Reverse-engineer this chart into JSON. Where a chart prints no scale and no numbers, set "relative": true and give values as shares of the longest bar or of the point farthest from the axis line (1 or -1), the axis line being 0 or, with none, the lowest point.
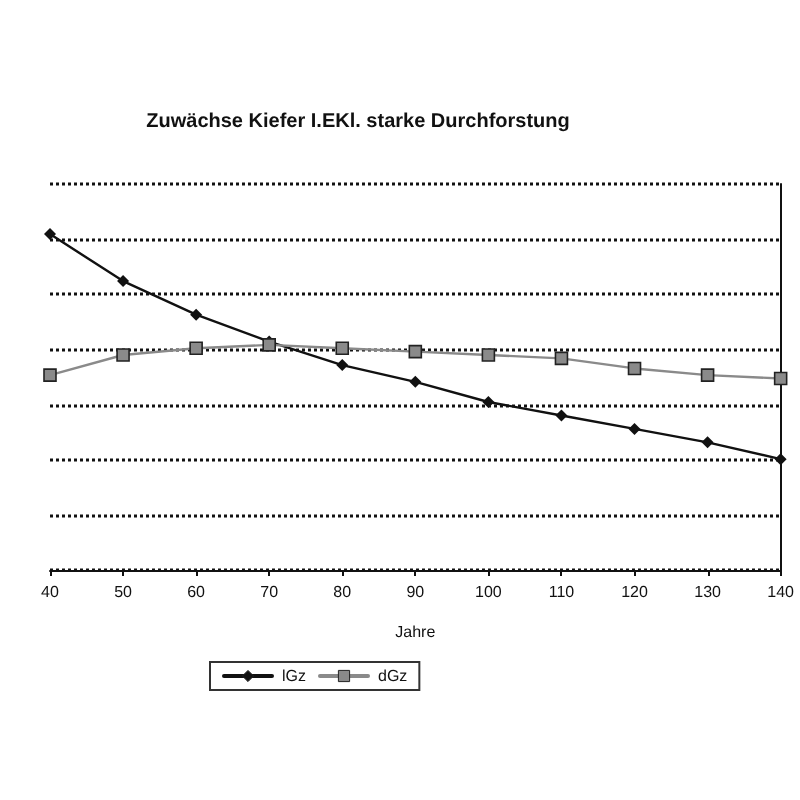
{
  "chart_data": {
    "type": "line",
    "title": "Zuwächse Kiefer I.EKl. starke Durchforstung",
    "xlabel": "Jahre",
    "relative": true,
    "x": [
      40,
      50,
      60,
      70,
      80,
      90,
      100,
      110,
      120,
      130,
      140
    ],
    "xlim": [
      40,
      140
    ],
    "xticks": [
      40,
      50,
      60,
      70,
      80,
      90,
      100,
      110,
      120,
      130,
      140
    ],
    "grid": "y",
    "legend": "bottom",
    "line_style": "solid",
    "series": [
      {
        "name": "lGz",
        "color": "#111111",
        "marker": "diamond",
        "values": [
          1.0,
          0.86,
          0.76,
          0.68,
          0.61,
          0.56,
          0.5,
          0.46,
          0.42,
          0.38,
          0.33
        ]
      },
      {
        "name": "dGz",
        "color": "#8a8a8a",
        "marker": "square",
        "values": [
          0.58,
          0.64,
          0.66,
          0.67,
          0.66,
          0.65,
          0.64,
          0.63,
          0.6,
          0.58,
          0.57
        ]
      }
    ]
  }
}
